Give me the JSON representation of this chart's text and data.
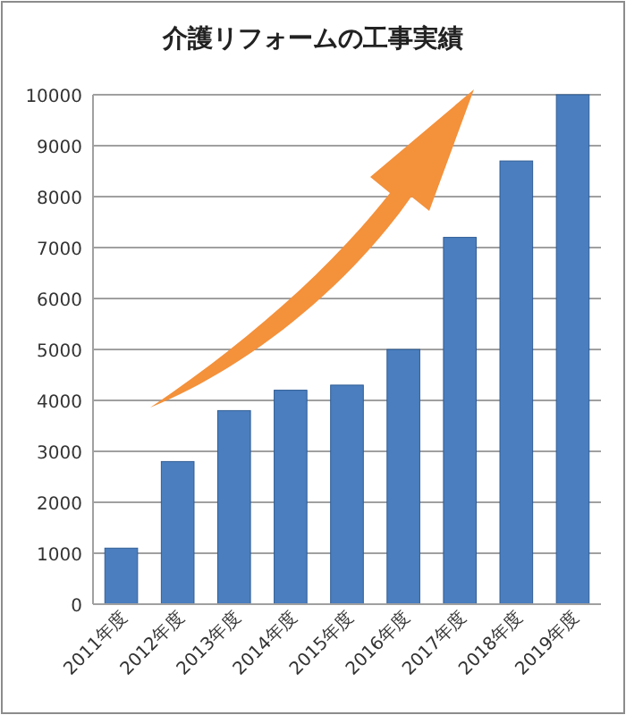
{
  "chart_data": {
    "type": "bar",
    "title": "介護リフォームの工事実績",
    "categories": [
      "2011年度",
      "2012年度",
      "2013年度",
      "2014年度",
      "2015年度",
      "2016年度",
      "2017年度",
      "2018年度",
      "2019年度"
    ],
    "values": [
      1100,
      2800,
      3800,
      4200,
      4300,
      5000,
      7200,
      8700,
      10000
    ],
    "color": "#4a7ebf",
    "ylim": [
      0,
      10000
    ],
    "yticks": [
      0,
      1000,
      2000,
      3000,
      4000,
      5000,
      6000,
      7000,
      8000,
      9000,
      10000
    ],
    "grid": "y"
  }
}
